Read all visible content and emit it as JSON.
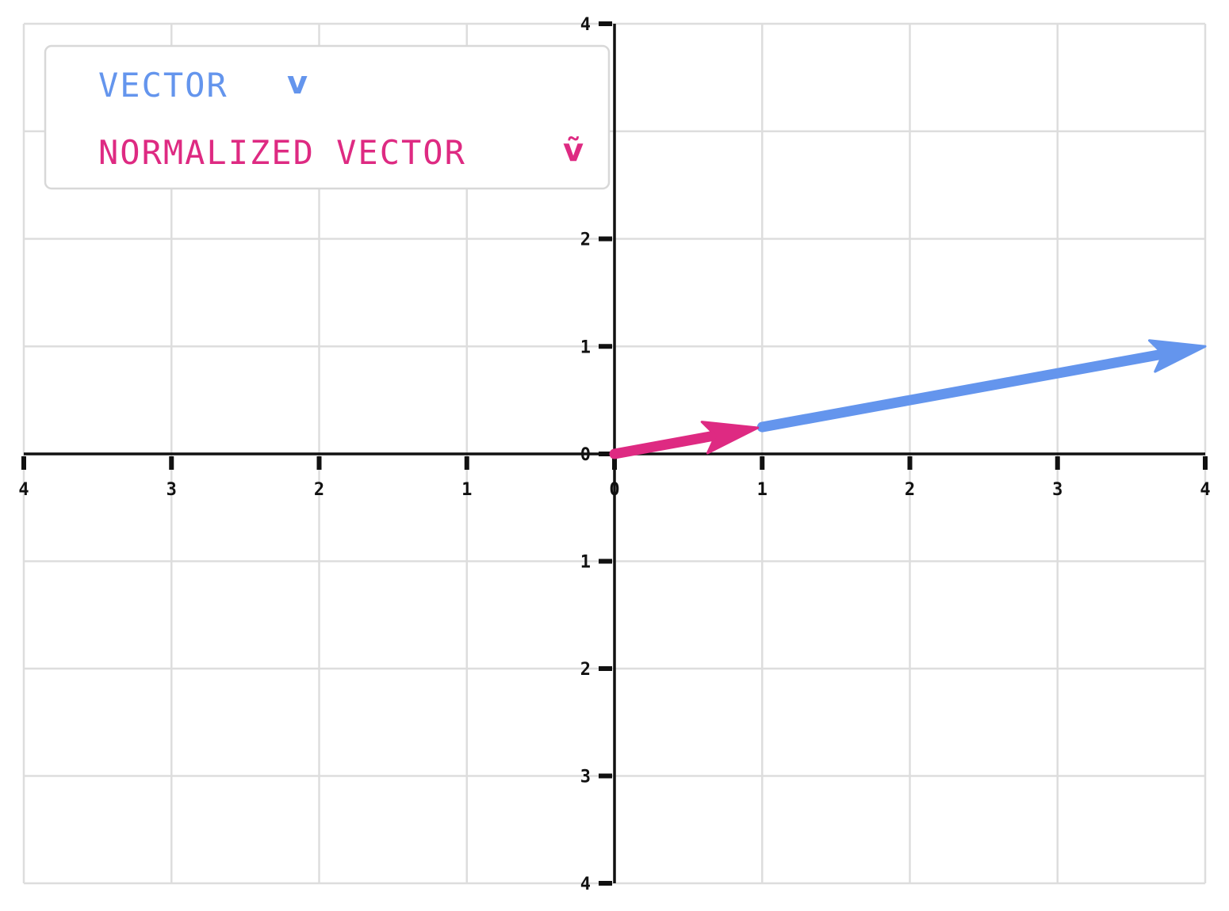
{
  "chart_data": {
    "type": "line",
    "style": "hand-drawn (xkcd)",
    "xlim": [
      -4,
      4
    ],
    "ylim": [
      -4,
      4
    ],
    "grid": true,
    "x_ticks": [
      -4,
      -3,
      -2,
      -1,
      0,
      1,
      2,
      3,
      4
    ],
    "x_tick_labels": [
      "4",
      "3",
      "2",
      "1",
      "0",
      "1",
      "2",
      "3",
      "4"
    ],
    "y_ticks": [
      -4,
      -3,
      -2,
      -1,
      0,
      1,
      2,
      4
    ],
    "y_tick_labels": [
      "4",
      "3",
      "2",
      "1",
      "0",
      "1",
      "2",
      "4"
    ],
    "legend_position": "top-left",
    "series": [
      {
        "name": "VECTOR",
        "symbol": "v",
        "color": "#6495ED",
        "kind": "arrow",
        "start": [
          1,
          0.25
        ],
        "end": [
          4,
          1
        ]
      },
      {
        "name": "NORMALIZED VECTOR",
        "symbol": "ṽ",
        "color": "#DE2A82",
        "kind": "arrow",
        "start": [
          0,
          0
        ],
        "end": [
          0.97,
          0.243
        ]
      }
    ]
  }
}
